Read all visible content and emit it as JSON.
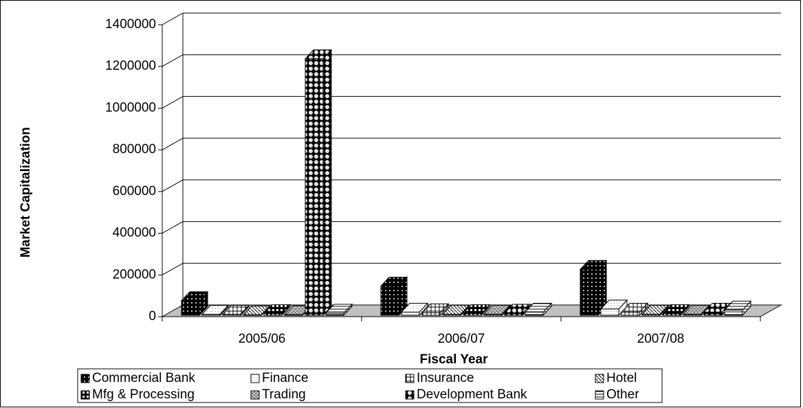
{
  "chart_data": {
    "type": "bar3d",
    "xlabel": "Fiscal Year",
    "ylabel": "Market Capitalization",
    "categories": [
      "2005/06",
      "2006/07",
      "2007/08"
    ],
    "series": [
      {
        "name": "Commercial Bank",
        "color": "#000000",
        "values": [
          70000,
          140000,
          220000
        ]
      },
      {
        "name": "Finance",
        "color": "#ffffff",
        "values": [
          5000,
          15000,
          30000
        ]
      },
      {
        "name": "Insurance",
        "color": "#ffffff",
        "values": [
          5000,
          12000,
          15000
        ]
      },
      {
        "name": "Hotel",
        "color": "#ffffff",
        "values": [
          2000,
          5000,
          5000
        ]
      },
      {
        "name": "Mfg & Processing",
        "color": "#000000",
        "values": [
          8000,
          8000,
          8000
        ]
      },
      {
        "name": "Trading",
        "color": "#808080",
        "values": [
          3000,
          5000,
          5000
        ]
      },
      {
        "name": "Development Bank",
        "color": "#000000",
        "values": [
          1230000,
          10000,
          15000
        ]
      },
      {
        "name": "Other",
        "color": "#ffffff",
        "values": [
          10000,
          15000,
          25000
        ]
      }
    ],
    "ylim": [
      0,
      1400000
    ],
    "yticks": [
      0,
      200000,
      400000,
      600000,
      800000,
      1000000,
      1200000,
      1400000
    ],
    "grid": true
  }
}
